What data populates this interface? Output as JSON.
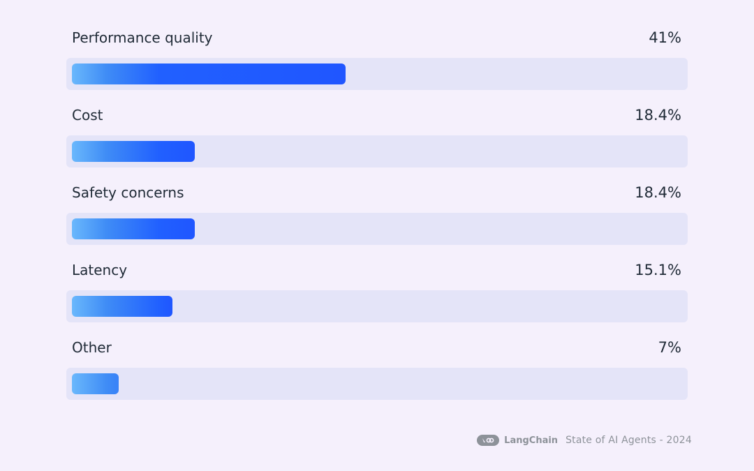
{
  "chart_data": {
    "type": "bar",
    "orientation": "horizontal",
    "categories": [
      "Performance quality",
      "Cost",
      "Safety concerns",
      "Latency",
      "Other"
    ],
    "values": [
      41,
      18.4,
      18.4,
      15.1,
      7
    ],
    "value_labels": [
      "41%",
      "18.4%",
      "18.4%",
      "15.1%",
      "7%"
    ],
    "unit": "%",
    "xlim": [
      0,
      100
    ],
    "grid": false,
    "legend": "none",
    "colors": {
      "bar_start": "#6ab8fc",
      "bar_end": "#2056ff",
      "track": "#e4e4f8",
      "background": "#f5f0fc"
    }
  },
  "footer": {
    "brand": "LangChain",
    "source": "State of AI Agents - 2024",
    "logo_icon": "langchain-logo-icon"
  }
}
